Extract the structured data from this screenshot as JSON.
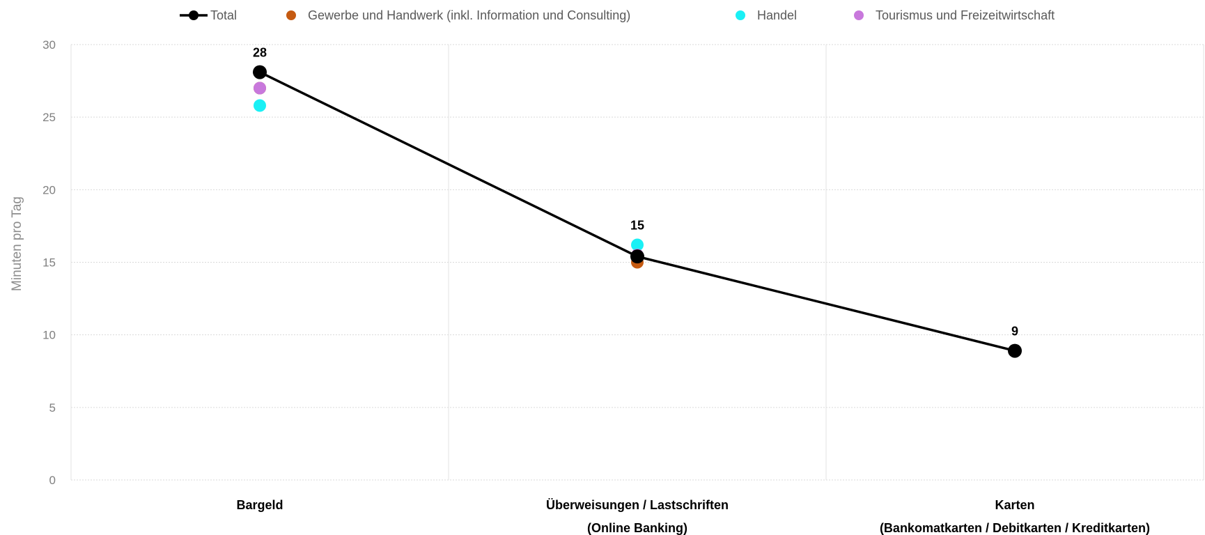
{
  "chart_data": {
    "type": "line",
    "categories": [
      [
        "Bargeld"
      ],
      [
        "Überweisungen / Lastschriften",
        "(Online Banking)"
      ],
      [
        "Karten",
        "(Bankomatkarten / Debitkarten / Kreditkarten)"
      ]
    ],
    "ylabel": "Minuten pro Tag",
    "ylim": [
      0,
      30
    ],
    "yticks": [
      0,
      5,
      10,
      15,
      20,
      25,
      30
    ],
    "grid": true,
    "legend_position": "top",
    "series": [
      {
        "name": "Total",
        "style": "line",
        "color": "#000000",
        "values": [
          28.1,
          15.4,
          8.9
        ],
        "labels": [
          "28",
          "15",
          "9"
        ]
      },
      {
        "name": "Gewerbe und Handwerk (inkl. Information und Consulting)",
        "style": "points",
        "color": "#c55a11",
        "values": [
          27.0,
          15.0,
          null
        ]
      },
      {
        "name": "Handel",
        "style": "points",
        "color": "#1af0f5",
        "values": [
          25.8,
          16.2,
          null
        ]
      },
      {
        "name": "Tourismus und Freizeitwirtschaft",
        "style": "points",
        "color": "#c878dc",
        "values": [
          27.0,
          15.5,
          null
        ]
      }
    ]
  }
}
